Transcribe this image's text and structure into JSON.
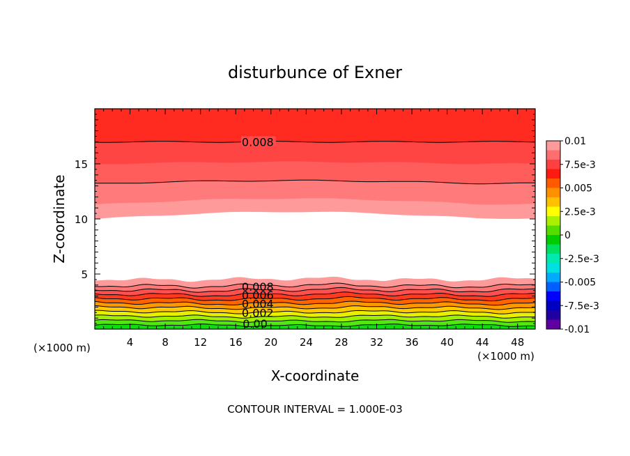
{
  "chart_data": {
    "type": "heatmap",
    "title": "disturbunce of Exner",
    "xlabel": "X-coordinate",
    "ylabel": "Z-coordinate",
    "x_unit": "(×1000 m)",
    "y_unit": "(×1000 m)",
    "footer": "CONTOUR INTERVAL = 1.000E-03",
    "xlim": [
      0,
      50
    ],
    "ylim": [
      0,
      20
    ],
    "x_ticks": [
      4,
      8,
      12,
      16,
      20,
      24,
      28,
      32,
      36,
      40,
      44,
      48
    ],
    "y_ticks": [
      5,
      10,
      15
    ],
    "colorbar": {
      "range": [
        -0.01,
        0.01
      ],
      "tick_labels": [
        "0.01",
        "7.5e-3",
        "0.005",
        "2.5e-3",
        "0",
        "-2.5e-3",
        "-0.005",
        "-7.5e-3",
        "-0.01"
      ],
      "colors": [
        "#ff9a9a",
        "#ff6e6e",
        "#ff4040",
        "#ff1a10",
        "#ff5a00",
        "#ff9000",
        "#ffc000",
        "#ffff00",
        "#aaf000",
        "#55dd00",
        "#00cc00",
        "#00e060",
        "#00eab0",
        "#00e0e0",
        "#00aaff",
        "#0060ff",
        "#0000ff",
        "#0000c0",
        "#2000a0",
        "#6000a0"
      ]
    },
    "band_colors": [
      "#10dd10",
      "#50e810",
      "#a0f000",
      "#e8f000",
      "#ffc800",
      "#ff9800",
      "#ff6400",
      "#ff3a20",
      "#ff5050",
      "#ff7676",
      "#ff9a9a",
      "#ffffff",
      "#ff9a9a",
      "#ff7a7a",
      "#ff5c5c",
      "#ff4444",
      "#ff2a20",
      "#ff1a12"
    ],
    "contour_labels": [
      "0.008",
      "0.008",
      "0.006",
      "0.004",
      "0.002",
      "0.00"
    ],
    "upper_contours_approx": [
      {
        "value": 0.008,
        "z_start": 17.0,
        "z_end": 17.0
      },
      {
        "value": 0.007,
        "z_start": 13.3,
        "z_end": 13.5
      }
    ]
  }
}
